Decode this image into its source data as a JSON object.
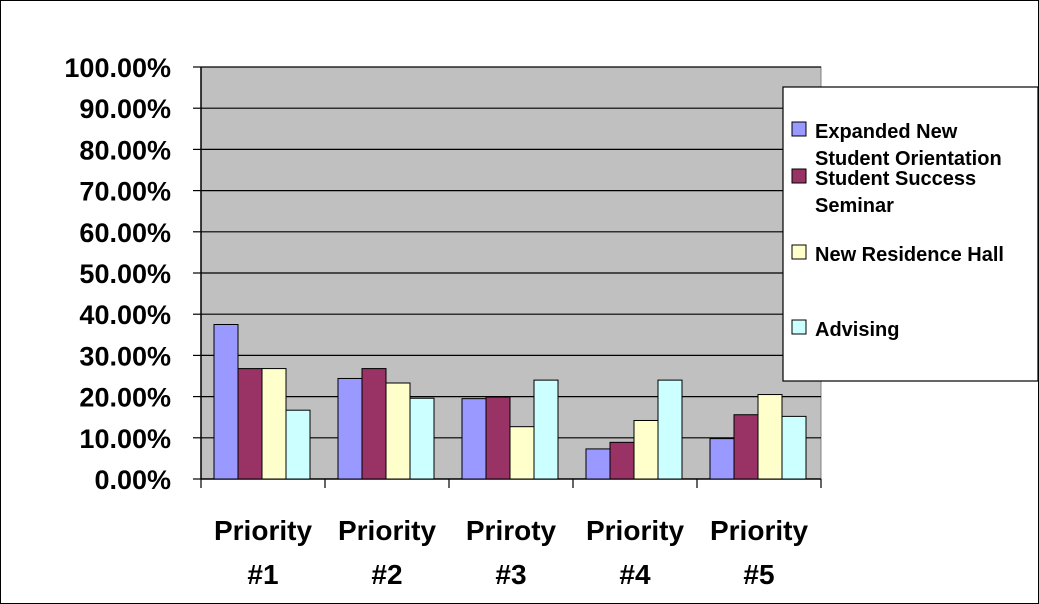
{
  "chart_data": {
    "type": "bar",
    "categories": [
      [
        "Priority",
        "#1"
      ],
      [
        "Priority",
        "#2"
      ],
      [
        "Priroty",
        "#3"
      ],
      [
        "Priority",
        "#4"
      ],
      [
        "Priority",
        "#5"
      ]
    ],
    "series": [
      {
        "name": "Expanded New Student Orientation",
        "legend_lines": [
          "Expanded New",
          "Student Orientation"
        ],
        "color": "#9999FF",
        "values": [
          37.5,
          24.4,
          19.5,
          7.3,
          9.8
        ]
      },
      {
        "name": "Student Success Seminar",
        "legend_lines": [
          "Student Success",
          "Seminar"
        ],
        "color": "#993366",
        "values": [
          26.8,
          26.8,
          19.9,
          8.9,
          15.6
        ]
      },
      {
        "name": "New Residence Hall",
        "legend_lines": [
          "New Residence Hall"
        ],
        "color": "#FFFFCC",
        "values": [
          26.8,
          23.3,
          12.7,
          14.2,
          20.5
        ]
      },
      {
        "name": "Advising",
        "legend_lines": [
          "Advising"
        ],
        "color": "#CCFFFF",
        "values": [
          16.7,
          19.6,
          24.0,
          24.0,
          15.2
        ]
      }
    ],
    "ylim": [
      0,
      100
    ],
    "y_tick_step": 10,
    "y_tick_labels": [
      "0.00%",
      "10.00%",
      "20.00%",
      "30.00%",
      "40.00%",
      "50.00%",
      "60.00%",
      "70.00%",
      "80.00%",
      "90.00%",
      "100.00%"
    ],
    "grid": true,
    "plot_background": "#C0C0C0",
    "legend_position": "right",
    "title": "",
    "xlabel": "",
    "ylabel": ""
  }
}
